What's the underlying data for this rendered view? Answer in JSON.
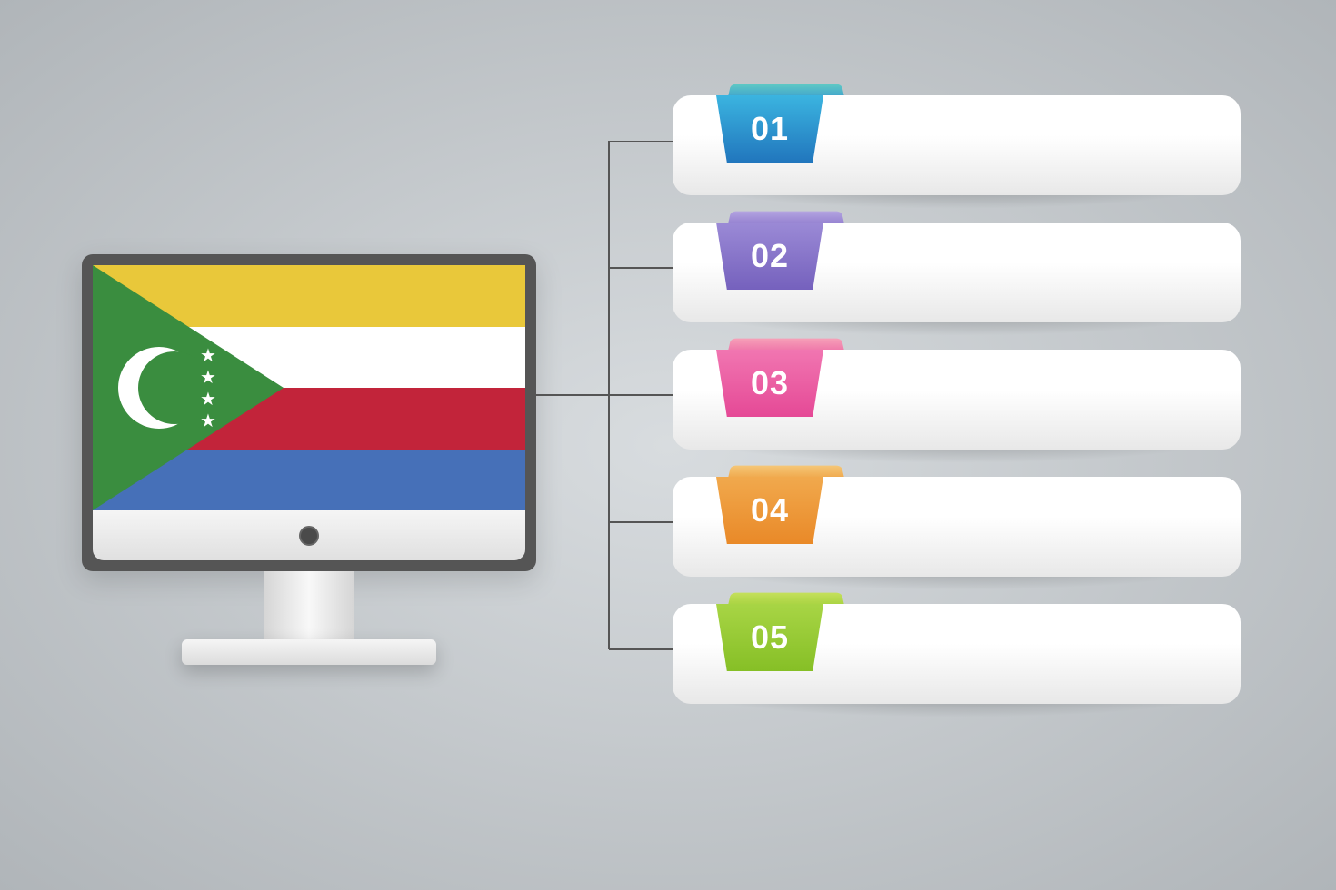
{
  "background": {
    "gradient_inner": "#d8dcdf",
    "gradient_outer": "#b0b5b9"
  },
  "monitor": {
    "bezel_color": "#555555",
    "chin_gradient_top": "#f5f5f5",
    "chin_gradient_bottom": "#e0e0e0",
    "button_color": "#4a4a4a"
  },
  "flag": {
    "stripes": [
      "#e9c83a",
      "#ffffff",
      "#c2243a",
      "#4670b8"
    ],
    "triangle_color": "#3a8d3f",
    "crescent_color": "#ffffff",
    "star_count": 4
  },
  "connector": {
    "stroke": "#555555",
    "stroke_width": 2
  },
  "items": [
    {
      "number": "01",
      "tab_back_gradient": [
        "#5fc9c4",
        "#3a9bcf"
      ],
      "tab_front_gradient": [
        "#3bb4e0",
        "#2176bd"
      ]
    },
    {
      "number": "02",
      "tab_back_gradient": [
        "#b4a4e0",
        "#8b77cc"
      ],
      "tab_front_gradient": [
        "#9b8ad6",
        "#7561bd"
      ]
    },
    {
      "number": "03",
      "tab_back_gradient": [
        "#f6a1b8",
        "#ed6aa5"
      ],
      "tab_front_gradient": [
        "#f176b1",
        "#e54996"
      ]
    },
    {
      "number": "04",
      "tab_back_gradient": [
        "#f5c778",
        "#ee9f3f"
      ],
      "tab_front_gradient": [
        "#f1a94d",
        "#e98928"
      ]
    },
    {
      "number": "05",
      "tab_back_gradient": [
        "#c5e05b",
        "#a0cf3a"
      ],
      "tab_front_gradient": [
        "#a8d545",
        "#86bf26"
      ]
    }
  ],
  "item_box": {
    "gradient_top": "#ffffff",
    "gradient_bottom": "#e8e8e8",
    "border_radius": 20,
    "height": 110
  },
  "typography": {
    "number_fontsize": 36,
    "number_weight": 700,
    "number_color": "#ffffff"
  }
}
